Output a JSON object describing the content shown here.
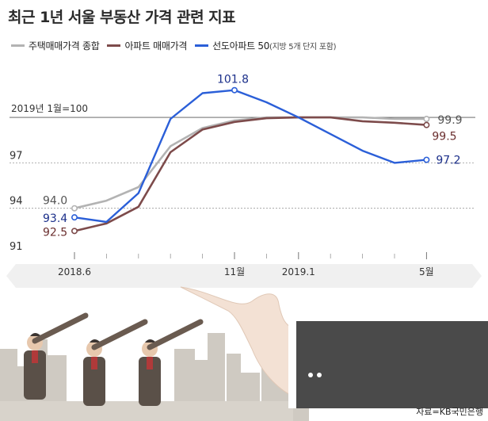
{
  "title": "최근 1년 서울 부동산 가격 관련 지표",
  "source": "자료=KB국민은행",
  "colors": {
    "background": "#ffffff",
    "axis_band": "#f0f0f0",
    "city": "#cfcac2",
    "suit": "#4a4a4a"
  },
  "chart_data": {
    "type": "line",
    "title": "최근 1년 서울 부동산 가격 관련 지표",
    "x": [
      "2018.6",
      "2018.7",
      "2018.8",
      "2018.9",
      "2018.10",
      "2018.11",
      "2018.12",
      "2019.1",
      "2019.2",
      "2019.3",
      "2019.4",
      "2019.5"
    ],
    "x_tick_labels": [
      "2018.6",
      "11월",
      "2019.1",
      "5월"
    ],
    "x_tick_indices": [
      0,
      5,
      7,
      11
    ],
    "ylim": [
      91,
      103
    ],
    "y_ticks": [
      91,
      94,
      97
    ],
    "reference_line": {
      "value": 100,
      "label": "2019년 1월=100"
    },
    "series": [
      {
        "name": "주택매매가격 종합",
        "color": "#b3b3b3",
        "values": [
          94.0,
          94.5,
          95.4,
          98.1,
          99.3,
          99.8,
          100.0,
          100.0,
          100.0,
          100.0,
          99.9,
          99.9
        ],
        "start_label": "94.0",
        "end_label": "99.9"
      },
      {
        "name": "아파트 매매가격",
        "color": "#7d4b4b",
        "values": [
          92.5,
          93.0,
          94.1,
          97.7,
          99.2,
          99.7,
          99.95,
          100.0,
          100.0,
          99.75,
          99.65,
          99.5
        ],
        "start_label": "92.5",
        "end_label": "99.5"
      },
      {
        "name": "선도아파트 50",
        "name_note": "(지방 5개 단지 포함)",
        "color": "#2b5fd8",
        "values": [
          93.4,
          93.1,
          95.0,
          99.9,
          101.6,
          101.8,
          101.0,
          100.0,
          98.9,
          97.8,
          97.0,
          97.2
        ],
        "start_label": "93.4",
        "end_label": "97.2",
        "peak_index": 5,
        "peak_label": "101.8"
      }
    ],
    "grid": "dashed horizontal lines at tick values"
  }
}
